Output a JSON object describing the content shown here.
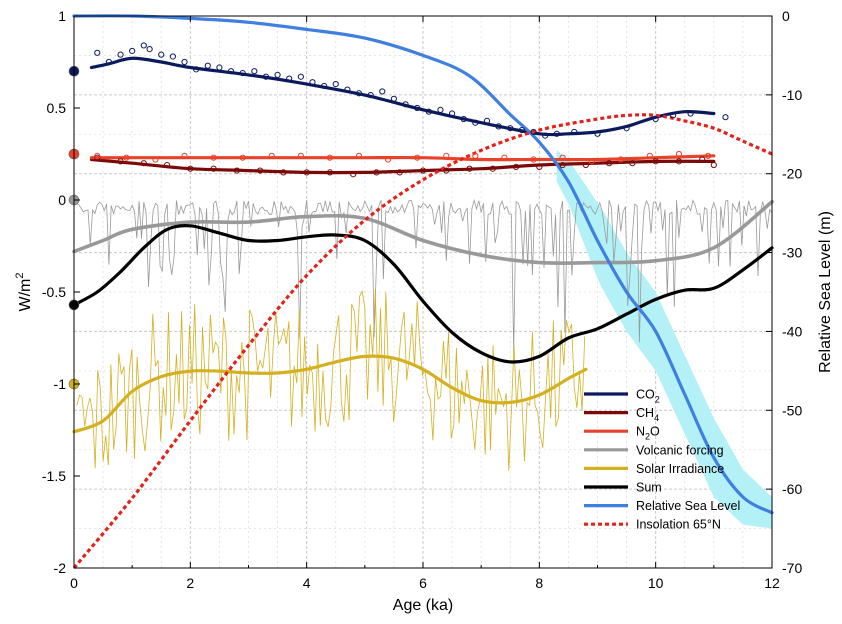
{
  "chart_data": {
    "type": "line",
    "xlabel": "Age (ka)",
    "ylabel_left": "W/m",
    "ylabel_left_superscript": "2",
    "ylabel_right": "Relative Sea Level (m)",
    "xlim": [
      0,
      12
    ],
    "ylim_left": [
      -2,
      1
    ],
    "ylim_right": [
      -70,
      0
    ],
    "x_ticks": [
      "0",
      "2",
      "4",
      "6",
      "8",
      "10",
      "12"
    ],
    "y_left_ticks": [
      "1",
      "0.5",
      "0",
      "-0.5",
      "-1",
      "-1.5",
      "-2"
    ],
    "y_right_ticks": [
      "0",
      "-10",
      "-20",
      "-30",
      "-40",
      "-50",
      "-60",
      "-70"
    ],
    "grid": true,
    "legend_position": "bottom-right",
    "series": [
      {
        "name": "CO",
        "name_sub": "2",
        "axis": "left",
        "color": "#0b1a5c",
        "smooth": [
          [
            0.3,
            0.72
          ],
          [
            0.6,
            0.74
          ],
          [
            1.0,
            0.77
          ],
          [
            1.5,
            0.75
          ],
          [
            2.0,
            0.72
          ],
          [
            3.0,
            0.68
          ],
          [
            4.0,
            0.63
          ],
          [
            5.0,
            0.57
          ],
          [
            6.0,
            0.49
          ],
          [
            7.0,
            0.42
          ],
          [
            8.0,
            0.36
          ],
          [
            8.5,
            0.36
          ],
          [
            9.0,
            0.37
          ],
          [
            9.5,
            0.4
          ],
          [
            10.0,
            0.45
          ],
          [
            10.5,
            0.48
          ],
          [
            11.0,
            0.47
          ]
        ],
        "points": [
          [
            0.4,
            0.8
          ],
          [
            0.6,
            0.75
          ],
          [
            0.8,
            0.79
          ],
          [
            1.0,
            0.81
          ],
          [
            1.2,
            0.84
          ],
          [
            1.3,
            0.82
          ],
          [
            1.5,
            0.79
          ],
          [
            1.7,
            0.78
          ],
          [
            1.9,
            0.75
          ],
          [
            2.1,
            0.71
          ],
          [
            2.3,
            0.73
          ],
          [
            2.5,
            0.72
          ],
          [
            2.7,
            0.7
          ],
          [
            2.9,
            0.69
          ],
          [
            3.1,
            0.7
          ],
          [
            3.3,
            0.67
          ],
          [
            3.5,
            0.68
          ],
          [
            3.7,
            0.66
          ],
          [
            3.9,
            0.67
          ],
          [
            4.1,
            0.64
          ],
          [
            4.3,
            0.62
          ],
          [
            4.5,
            0.63
          ],
          [
            4.7,
            0.6
          ],
          [
            4.9,
            0.58
          ],
          [
            5.1,
            0.57
          ],
          [
            5.3,
            0.59
          ],
          [
            5.5,
            0.55
          ],
          [
            5.7,
            0.52
          ],
          [
            5.9,
            0.5
          ],
          [
            6.1,
            0.48
          ],
          [
            6.3,
            0.49
          ],
          [
            6.5,
            0.47
          ],
          [
            6.7,
            0.44
          ],
          [
            6.9,
            0.42
          ],
          [
            7.1,
            0.43
          ],
          [
            7.3,
            0.4
          ],
          [
            7.5,
            0.39
          ],
          [
            7.7,
            0.38
          ],
          [
            7.9,
            0.37
          ],
          [
            8.1,
            0.35
          ],
          [
            8.3,
            0.36
          ],
          [
            8.6,
            0.37
          ],
          [
            9.0,
            0.36
          ],
          [
            9.5,
            0.39
          ],
          [
            10.0,
            0.44
          ],
          [
            10.3,
            0.46
          ],
          [
            10.6,
            0.47
          ],
          [
            11.2,
            0.45
          ]
        ],
        "endpoint": 0.7
      },
      {
        "name": "CH",
        "name_sub": "4",
        "axis": "left",
        "color": "#7a0a0a",
        "smooth": [
          [
            0.3,
            0.22
          ],
          [
            1.0,
            0.2
          ],
          [
            2.0,
            0.17
          ],
          [
            3.0,
            0.16
          ],
          [
            4.0,
            0.15
          ],
          [
            5.0,
            0.15
          ],
          [
            6.0,
            0.16
          ],
          [
            7.0,
            0.17
          ],
          [
            8.0,
            0.19
          ],
          [
            9.0,
            0.2
          ],
          [
            10.0,
            0.21
          ],
          [
            11.0,
            0.21
          ]
        ],
        "points": [
          [
            0.4,
            0.23
          ],
          [
            0.8,
            0.21
          ],
          [
            1.2,
            0.2
          ],
          [
            1.6,
            0.19
          ],
          [
            2.0,
            0.17
          ],
          [
            2.4,
            0.17
          ],
          [
            2.8,
            0.16
          ],
          [
            3.2,
            0.16
          ],
          [
            3.6,
            0.15
          ],
          [
            4.0,
            0.15
          ],
          [
            4.4,
            0.15
          ],
          [
            4.8,
            0.14
          ],
          [
            5.2,
            0.15
          ],
          [
            5.6,
            0.15
          ],
          [
            6.0,
            0.16
          ],
          [
            6.4,
            0.16
          ],
          [
            6.8,
            0.17
          ],
          [
            7.2,
            0.17
          ],
          [
            7.6,
            0.18
          ],
          [
            8.0,
            0.18
          ],
          [
            8.4,
            0.19
          ],
          [
            8.8,
            0.19
          ],
          [
            9.2,
            0.2
          ],
          [
            9.6,
            0.2
          ],
          [
            10.0,
            0.21
          ],
          [
            10.4,
            0.21
          ],
          [
            10.8,
            0.22
          ],
          [
            11.0,
            0.19
          ]
        ],
        "endpoint": 0.25
      },
      {
        "name": "N",
        "name_sub": "2",
        "name_suffix": "O",
        "axis": "left",
        "color": "#e8432a",
        "smooth": [
          [
            0.3,
            0.23
          ],
          [
            1.0,
            0.23
          ],
          [
            2.0,
            0.23
          ],
          [
            3.0,
            0.23
          ],
          [
            4.0,
            0.23
          ],
          [
            5.0,
            0.23
          ],
          [
            6.0,
            0.23
          ],
          [
            7.0,
            0.22
          ],
          [
            8.0,
            0.22
          ],
          [
            9.0,
            0.22
          ],
          [
            10.0,
            0.23
          ],
          [
            11.0,
            0.24
          ]
        ],
        "points": [
          [
            0.4,
            0.24
          ],
          [
            0.9,
            0.23
          ],
          [
            1.4,
            0.22
          ],
          [
            1.9,
            0.24
          ],
          [
            2.4,
            0.23
          ],
          [
            2.9,
            0.23
          ],
          [
            3.4,
            0.24
          ],
          [
            3.9,
            0.24
          ],
          [
            4.4,
            0.23
          ],
          [
            4.9,
            0.24
          ],
          [
            5.4,
            0.22
          ],
          [
            5.9,
            0.23
          ],
          [
            6.4,
            0.24
          ],
          [
            6.9,
            0.24
          ],
          [
            7.4,
            0.23
          ],
          [
            7.9,
            0.22
          ],
          [
            8.4,
            0.23
          ],
          [
            8.9,
            0.21
          ],
          [
            9.4,
            0.22
          ],
          [
            9.9,
            0.24
          ],
          [
            10.4,
            0.25
          ],
          [
            10.9,
            0.24
          ]
        ],
        "endpoint": 0.25
      },
      {
        "name": "Volcanic forcing",
        "axis": "left",
        "color": "#999999",
        "smooth": [
          [
            0,
            -0.28
          ],
          [
            0.5,
            -0.22
          ],
          [
            1.0,
            -0.16
          ],
          [
            2.0,
            -0.12
          ],
          [
            3.0,
            -0.12
          ],
          [
            4.0,
            -0.09
          ],
          [
            5.0,
            -0.1
          ],
          [
            6.0,
            -0.22
          ],
          [
            7.0,
            -0.3
          ],
          [
            8.0,
            -0.34
          ],
          [
            9.0,
            -0.34
          ],
          [
            10.0,
            -0.33
          ],
          [
            11.0,
            -0.26
          ],
          [
            12.0,
            -0.01
          ]
        ],
        "endpoint": 0
      },
      {
        "name": "Solar Irradiance",
        "axis": "left",
        "color": "#d4b021",
        "smooth": [
          [
            0,
            -1.26
          ],
          [
            0.5,
            -1.2
          ],
          [
            1.0,
            -1.04
          ],
          [
            1.5,
            -0.96
          ],
          [
            2.0,
            -0.93
          ],
          [
            2.5,
            -0.93
          ],
          [
            3.0,
            -0.94
          ],
          [
            3.5,
            -0.94
          ],
          [
            4.0,
            -0.92
          ],
          [
            4.5,
            -0.88
          ],
          [
            5.0,
            -0.85
          ],
          [
            5.5,
            -0.86
          ],
          [
            6.0,
            -0.92
          ],
          [
            6.5,
            -1.02
          ],
          [
            7.0,
            -1.09
          ],
          [
            7.5,
            -1.1
          ],
          [
            8.0,
            -1.06
          ],
          [
            8.5,
            -0.97
          ],
          [
            8.8,
            -0.92
          ]
        ],
        "endpoint": -1.0
      },
      {
        "name": "Sum",
        "axis": "left",
        "color": "#000000",
        "smooth": [
          [
            0,
            -0.57
          ],
          [
            0.4,
            -0.5
          ],
          [
            0.8,
            -0.39
          ],
          [
            1.2,
            -0.26
          ],
          [
            1.6,
            -0.16
          ],
          [
            2.0,
            -0.14
          ],
          [
            2.5,
            -0.18
          ],
          [
            3.0,
            -0.22
          ],
          [
            3.5,
            -0.22
          ],
          [
            4.0,
            -0.2
          ],
          [
            4.5,
            -0.19
          ],
          [
            5.0,
            -0.22
          ],
          [
            5.5,
            -0.35
          ],
          [
            6.0,
            -0.55
          ],
          [
            6.5,
            -0.72
          ],
          [
            7.0,
            -0.83
          ],
          [
            7.5,
            -0.88
          ],
          [
            8.0,
            -0.85
          ],
          [
            8.5,
            -0.75
          ],
          [
            9.0,
            -0.7
          ],
          [
            9.5,
            -0.62
          ],
          [
            10.0,
            -0.54
          ],
          [
            10.5,
            -0.49
          ],
          [
            11.0,
            -0.48
          ],
          [
            11.5,
            -0.38
          ],
          [
            12.0,
            -0.26
          ]
        ],
        "endpoint": -0.57
      },
      {
        "name": "Relative Sea Level",
        "axis": "right",
        "color": "#3f7fe0",
        "band_color": "#b3f1f7",
        "smooth": [
          [
            0,
            0
          ],
          [
            1,
            0
          ],
          [
            2,
            -0.3
          ],
          [
            3,
            -0.8
          ],
          [
            4,
            -1.7
          ],
          [
            5,
            -2.8
          ],
          [
            6,
            -5.0
          ],
          [
            6.8,
            -7.6
          ],
          [
            7.5,
            -12.5
          ],
          [
            8.0,
            -16
          ],
          [
            8.5,
            -21
          ],
          [
            9.0,
            -28.5
          ],
          [
            9.5,
            -35
          ],
          [
            10.0,
            -40
          ],
          [
            10.5,
            -48
          ],
          [
            11.0,
            -56
          ],
          [
            11.5,
            -61
          ],
          [
            12.0,
            -63
          ]
        ]
      },
      {
        "name": "Insolation 65°N",
        "axis": "left",
        "color": "#e3221c",
        "dashed": true,
        "smooth": [
          [
            0,
            -2.0
          ],
          [
            1,
            -1.62
          ],
          [
            2,
            -1.2
          ],
          [
            3,
            -0.79
          ],
          [
            4,
            -0.41
          ],
          [
            5,
            -0.11
          ],
          [
            6,
            0.11
          ],
          [
            7,
            0.27
          ],
          [
            8,
            0.38
          ],
          [
            9,
            0.44
          ],
          [
            9.5,
            0.46
          ],
          [
            10,
            0.46
          ],
          [
            10.5,
            0.43
          ],
          [
            11,
            0.39
          ],
          [
            11.5,
            0.32
          ],
          [
            12,
            0.25
          ]
        ]
      }
    ]
  }
}
